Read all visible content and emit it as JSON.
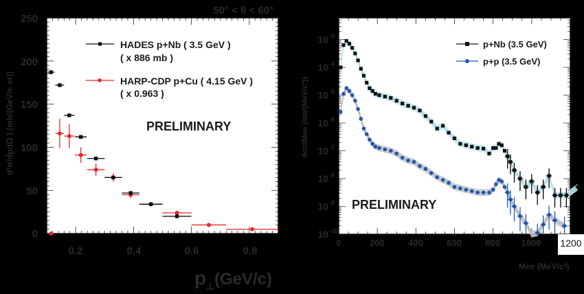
{
  "chart_data": [
    {
      "type": "scatter",
      "title": "50° < θ < 60°",
      "xlabel": "p⊥ (GeV/c)",
      "ylabel": "d²σ/dpdΩ ) (mb/(GeV/c sr))",
      "xlim": [
        0.1,
        0.9
      ],
      "ylim": [
        0,
        250
      ],
      "xticks": [
        "0.2",
        "0.4",
        "0.6",
        "0.8"
      ],
      "yticks": [
        "0",
        "50",
        "100",
        "150",
        "200",
        "250"
      ],
      "annotation": "PRELIMINARY",
      "legend": [
        {
          "name": "HADES p+Nb ( 3.5 GeV )",
          "sub": "( x 886 mb )",
          "color": "#000000",
          "marker": "square"
        },
        {
          "name": "HARP-CDP p+Cu ( 4.15 GeV )",
          "sub": "( x 0.963 )",
          "color": "#e8262b",
          "marker": "circle"
        }
      ],
      "series": [
        {
          "name": "HADES p+Nb (3.5 GeV)",
          "color": "#000000",
          "points": [
            {
              "x": 0.115,
              "y": 187,
              "xerr": 0.012,
              "yerr": 1
            },
            {
              "x": 0.145,
              "y": 172,
              "xerr": 0.015,
              "yerr": 1
            },
            {
              "x": 0.178,
              "y": 137,
              "xerr": 0.018,
              "yerr": 1
            },
            {
              "x": 0.218,
              "y": 112,
              "xerr": 0.02,
              "yerr": 1
            },
            {
              "x": 0.27,
              "y": 87,
              "xerr": 0.03,
              "yerr": 1
            },
            {
              "x": 0.33,
              "y": 65,
              "xerr": 0.03,
              "yerr": 1
            },
            {
              "x": 0.39,
              "y": 47,
              "xerr": 0.03,
              "yerr": 1
            },
            {
              "x": 0.46,
              "y": 34,
              "xerr": 0.04,
              "yerr": 1
            },
            {
              "x": 0.55,
              "y": 20,
              "xerr": 0.05,
              "yerr": 1
            }
          ]
        },
        {
          "name": "HARP-CDP p+Cu (4.15 GeV)",
          "color": "#e8262b",
          "points": [
            {
              "x": 0.115,
              "y": 0,
              "xerr": 0.01,
              "yerr": 1
            },
            {
              "x": 0.145,
              "y": 116,
              "xerr": 0.015,
              "yerr": 17
            },
            {
              "x": 0.178,
              "y": 113,
              "xerr": 0.018,
              "yerr": 14
            },
            {
              "x": 0.218,
              "y": 91,
              "xerr": 0.02,
              "yerr": 9
            },
            {
              "x": 0.27,
              "y": 74,
              "xerr": 0.03,
              "yerr": 7
            },
            {
              "x": 0.33,
              "y": 65,
              "xerr": 0.03,
              "yerr": 5
            },
            {
              "x": 0.39,
              "y": 45,
              "xerr": 0.03,
              "yerr": 4
            },
            {
              "x": 0.46,
              "y": 34,
              "xerr": 0.04,
              "yerr": 2
            },
            {
              "x": 0.55,
              "y": 24,
              "xerr": 0.05,
              "yerr": 2
            },
            {
              "x": 0.66,
              "y": 10,
              "xerr": 0.06,
              "yerr": 1.5
            },
            {
              "x": 0.81,
              "y": 5,
              "xerr": 0.09,
              "yerr": 1
            }
          ]
        }
      ]
    },
    {
      "type": "scatter",
      "title": "",
      "xlabel": "Mee (MeV/c²)",
      "ylabel": "dσ/dMee (mb/(MeV/c²))",
      "xlim": [
        0,
        1200
      ],
      "ylim": [
        1e-10,
        0.01
      ],
      "yscale": "log",
      "xticks": [
        "0",
        "200",
        "400",
        "600",
        "800",
        "1000",
        "1200"
      ],
      "yticks": [
        "10^-3",
        "10^-4",
        "10^-5",
        "10^-6",
        "10^-7",
        "10^-8",
        "10^-9",
        "10^-10"
      ],
      "annotation": "PRELIMINARY",
      "legend": [
        {
          "name": "p+Nb (3.5 GeV)",
          "color": "#000000",
          "marker": "square"
        },
        {
          "name": "p+p (3.5 GeV)",
          "color": "#1f56b4",
          "marker": "circle"
        }
      ],
      "series": [
        {
          "name": "p+Nb (3.5 GeV)",
          "color": "#000000",
          "band_color": "#bfe6ee",
          "points": [
            [
              10,
              -4.0
            ],
            [
              25,
              -3.2
            ],
            [
              40,
              -3.05
            ],
            [
              55,
              -3.15
            ],
            [
              70,
              -3.3
            ],
            [
              85,
              -3.5
            ],
            [
              100,
              -3.75
            ],
            [
              115,
              -4.05
            ],
            [
              130,
              -4.3
            ],
            [
              145,
              -4.55
            ],
            [
              160,
              -4.75
            ],
            [
              175,
              -4.85
            ],
            [
              190,
              -4.95
            ],
            [
              210,
              -5.0
            ],
            [
              240,
              -5.05
            ],
            [
              270,
              -5.1
            ],
            [
              300,
              -5.2
            ],
            [
              330,
              -5.3
            ],
            [
              360,
              -5.38
            ],
            [
              390,
              -5.45
            ],
            [
              420,
              -5.55
            ],
            [
              450,
              -5.75
            ],
            [
              480,
              -5.95
            ],
            [
              510,
              -6.2
            ],
            [
              540,
              -6.1
            ],
            [
              570,
              -6.35
            ],
            [
              600,
              -6.55
            ],
            [
              630,
              -6.75
            ],
            [
              660,
              -6.8
            ],
            [
              690,
              -6.85
            ],
            [
              720,
              -6.9
            ],
            [
              750,
              -6.92
            ],
            [
              780,
              -7.1
            ],
            [
              800,
              -6.9
            ],
            [
              815,
              -6.9
            ],
            [
              830,
              -6.75
            ],
            [
              845,
              -6.8
            ],
            [
              860,
              -7.0
            ],
            [
              875,
              -7.2
            ],
            [
              890,
              -7.4
            ],
            [
              910,
              -7.7
            ],
            [
              940,
              -8.0
            ],
            [
              970,
              -8.3
            ],
            [
              1000,
              -8.1
            ],
            [
              1030,
              -8.5
            ],
            [
              1060,
              -8.3
            ],
            [
              1090,
              -7.9
            ],
            [
              1120,
              -8.6
            ],
            [
              1150,
              -8.6
            ],
            [
              1180,
              -8.6
            ],
            [
              1240,
              -8.3
            ]
          ]
        },
        {
          "name": "p+p (3.5 GeV)",
          "color": "#1f56b4",
          "band_color": "#c8c8c8",
          "points": [
            [
              10,
              -5.6
            ],
            [
              25,
              -4.95
            ],
            [
              40,
              -4.75
            ],
            [
              55,
              -4.85
            ],
            [
              70,
              -5.0
            ],
            [
              85,
              -5.2
            ],
            [
              100,
              -5.5
            ],
            [
              115,
              -5.85
            ],
            [
              130,
              -6.2
            ],
            [
              145,
              -6.4
            ],
            [
              160,
              -6.6
            ],
            [
              175,
              -6.75
            ],
            [
              190,
              -6.85
            ],
            [
              210,
              -6.9
            ],
            [
              240,
              -6.95
            ],
            [
              270,
              -7.0
            ],
            [
              300,
              -7.1
            ],
            [
              330,
              -7.25
            ],
            [
              360,
              -7.35
            ],
            [
              390,
              -7.4
            ],
            [
              420,
              -7.55
            ],
            [
              450,
              -7.65
            ],
            [
              480,
              -7.8
            ],
            [
              510,
              -7.95
            ],
            [
              540,
              -8.05
            ],
            [
              570,
              -8.15
            ],
            [
              600,
              -8.3
            ],
            [
              630,
              -8.35
            ],
            [
              660,
              -8.4
            ],
            [
              690,
              -8.45
            ],
            [
              720,
              -8.5
            ],
            [
              750,
              -8.5
            ],
            [
              780,
              -8.5
            ],
            [
              800,
              -8.4
            ],
            [
              815,
              -8.2
            ],
            [
              830,
              -8.05
            ],
            [
              845,
              -8.1
            ],
            [
              860,
              -8.3
            ],
            [
              875,
              -8.5
            ],
            [
              890,
              -8.75
            ],
            [
              910,
              -9.0
            ],
            [
              940,
              -9.35
            ],
            [
              970,
              -9.6
            ],
            [
              1000,
              -10.0
            ],
            [
              1030,
              -9.95
            ],
            [
              1060,
              -9.65
            ],
            [
              1090,
              -9.3
            ],
            [
              1120,
              -9.5
            ],
            [
              1170,
              -9.7
            ]
          ]
        }
      ]
    }
  ],
  "left_plot": {
    "title": "50° < θ < 60°",
    "yaxis_label": "d²σ/dpdΩ ) (mb/(GeV/c sr))",
    "xaxis_label_main": "p",
    "xaxis_label_sub": "⊥",
    "xaxis_label_unit": "(GeV/c)",
    "y_ticks": [
      "250",
      "200",
      "150",
      "100",
      "50",
      "0"
    ],
    "x_ticks": [
      "0.2",
      "0.4",
      "0.6",
      "0.8"
    ],
    "legend_1_line1": "HADES p+Nb ( 3.5 GeV )",
    "legend_1_line2": "( x 886 mb )",
    "legend_2_line1": "HARP-CDP p+Cu ( 4.15 GeV )",
    "legend_2_line2": "( x 0.963 )",
    "watermark": "PRELIMINARY"
  },
  "right_plot": {
    "yaxis_label": "dσ/dMee (mb/(MeV/c²))",
    "xaxis_label": "Mee (MeV/c²)",
    "y_ticks": [
      "10",
      "10",
      "10",
      "10",
      "10",
      "10",
      "10",
      "10"
    ],
    "y_exps": [
      "-3",
      "-4",
      "-5",
      "-6",
      "-7",
      "-8",
      "-9",
      "-10"
    ],
    "x_ticks": [
      "0",
      "200",
      "400",
      "600",
      "800",
      "1000"
    ],
    "x_tick_last": "1200",
    "legend_1": "p+Nb (3.5 GeV)",
    "legend_2": "p+p (3.5 GeV)",
    "watermark": "PRELIMINARY"
  },
  "colors": {
    "hades": "#111111",
    "harp": "#e8262b",
    "pnb": "#111111",
    "pp": "#1f56b4",
    "pnb_band": "#bfe6ee",
    "pp_band": "#c8c8c8",
    "axis_text": "#2a2a2a"
  }
}
